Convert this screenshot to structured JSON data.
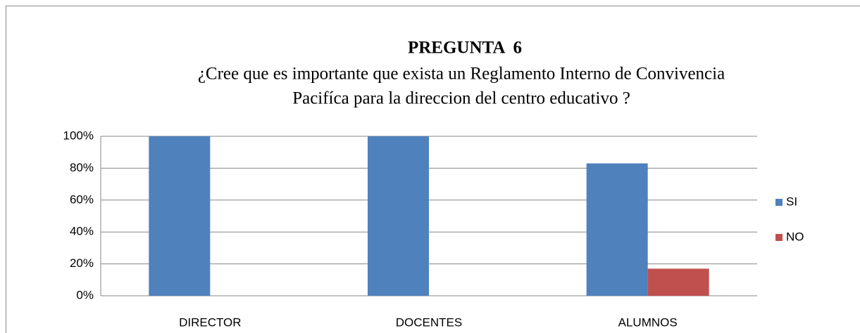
{
  "chart_data": {
    "type": "bar",
    "title": "PREGUNTA  6",
    "subtitle": [
      "¿Cree que es importante que exista un Reglamento Interno de Convivencia",
      "Pacifíca para la direccion del centro educativo ?"
    ],
    "categories": [
      "DIRECTOR",
      "DOCENTES",
      "ALUMNOS"
    ],
    "series": [
      {
        "name": "SI",
        "color": "#4f81bd",
        "values": [
          100,
          100,
          83
        ]
      },
      {
        "name": "NO",
        "color": "#c0504d",
        "values": [
          0,
          0,
          17
        ]
      }
    ],
    "ylim": [
      0,
      100
    ],
    "yticks": [
      {
        "value": 0,
        "label": "0%"
      },
      {
        "value": 20,
        "label": "20%"
      },
      {
        "value": 40,
        "label": "40%"
      },
      {
        "value": 60,
        "label": "60%"
      },
      {
        "value": 80,
        "label": "80%"
      },
      {
        "value": 100,
        "label": "100%"
      }
    ],
    "grid": true,
    "legend": "right"
  }
}
